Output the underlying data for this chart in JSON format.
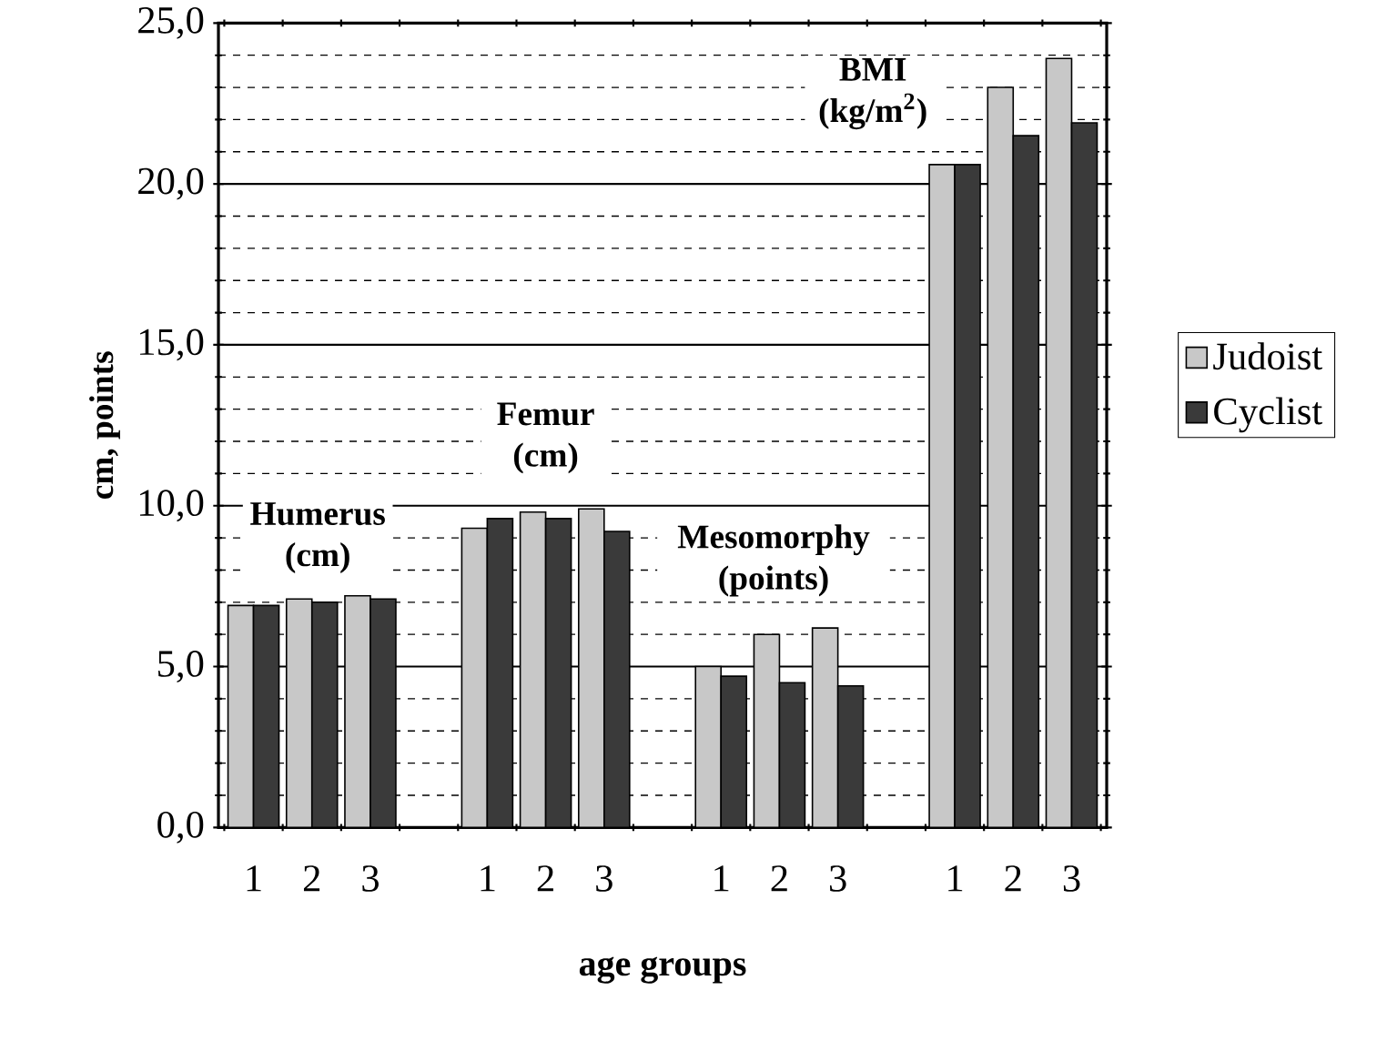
{
  "chart_data": {
    "type": "bar",
    "xlabel": "age groups",
    "ylabel": "cm, points",
    "categories": [
      "1",
      "2",
      "3",
      null,
      "1",
      "2",
      "3",
      null,
      "1",
      "2",
      "3",
      null,
      "1",
      "2",
      "3"
    ],
    "series": [
      {
        "name": "Judoist",
        "color": "#c8c8c8",
        "values": [
          6.9,
          7.1,
          7.2,
          null,
          9.3,
          9.8,
          9.9,
          null,
          5.0,
          6.0,
          6.2,
          null,
          20.6,
          23.0,
          23.9
        ]
      },
      {
        "name": "Cyclist",
        "color": "#3a3a3a",
        "values": [
          6.9,
          7.0,
          7.1,
          null,
          9.6,
          9.6,
          9.2,
          null,
          4.7,
          4.5,
          4.4,
          null,
          20.6,
          21.5,
          21.9
        ]
      }
    ],
    "ylim": [
      0,
      25
    ],
    "yticks": [
      {
        "value": 0,
        "label": "0,0"
      },
      {
        "value": 5,
        "label": "5,0"
      },
      {
        "value": 10,
        "label": "10,0"
      },
      {
        "value": 15,
        "label": "15,0"
      },
      {
        "value": 20,
        "label": "20,0"
      },
      {
        "value": 25,
        "label": "25,0"
      }
    ],
    "grid": "y",
    "legend": "right",
    "annotations": [
      "Humerus (cm)",
      "Femur (cm)",
      "Mesomorphy (points)",
      "BMI (kg/m$^{2}$)"
    ]
  }
}
